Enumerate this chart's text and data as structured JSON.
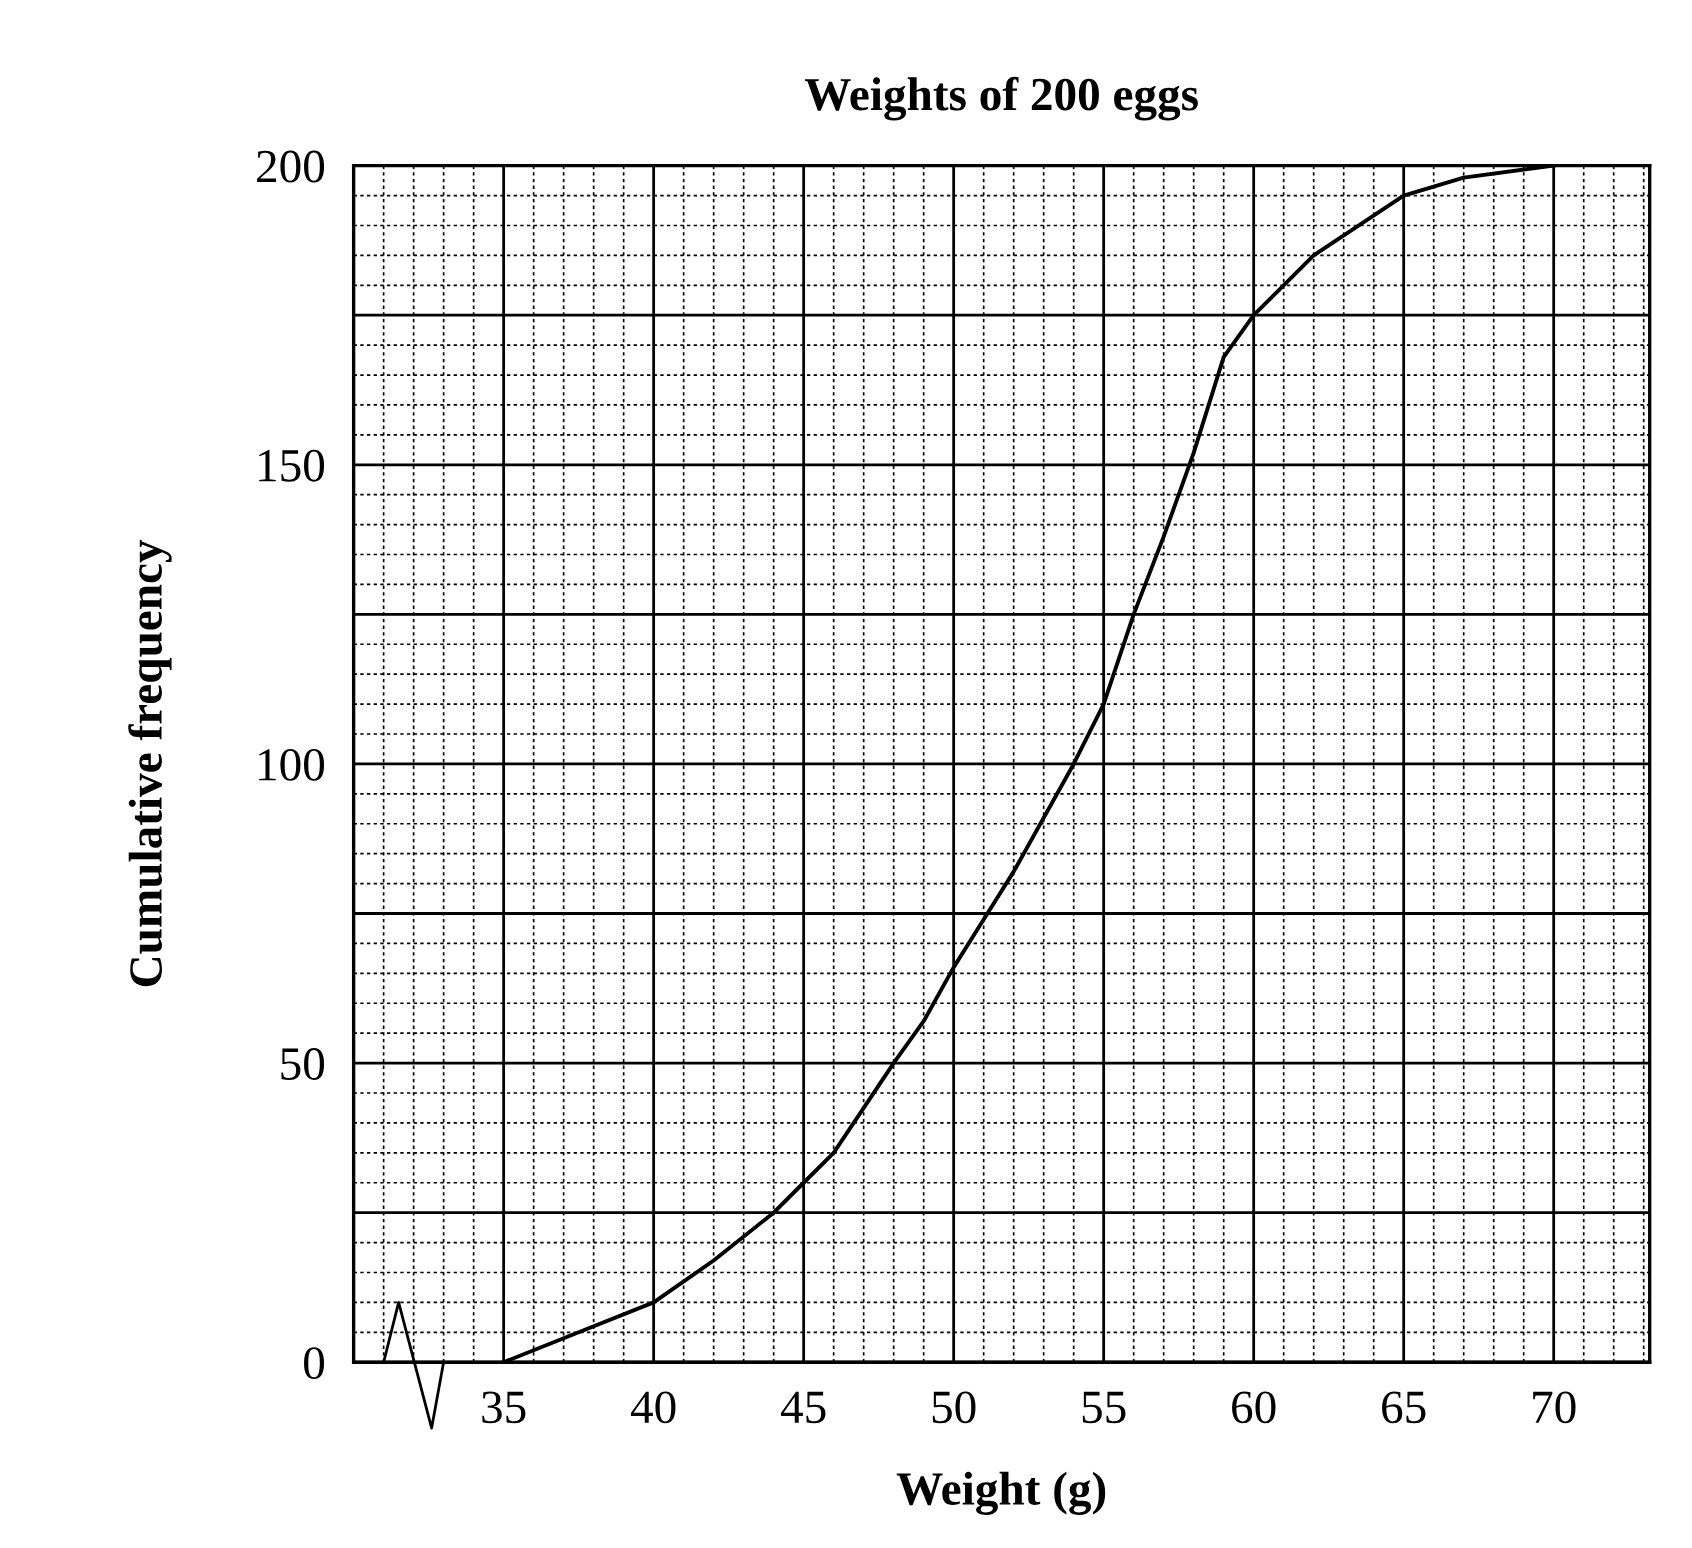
{
  "chart_data": {
    "type": "line",
    "title": "Weights of 200 eggs",
    "xlabel": "Weight (g)",
    "ylabel": "Cumulative frequency",
    "x": [
      35,
      37,
      40,
      42,
      44,
      45,
      46,
      48,
      49,
      50,
      51,
      52,
      54,
      55,
      56,
      57,
      58,
      59,
      60,
      62,
      65,
      67,
      70
    ],
    "series": [
      {
        "color": "#000000",
        "values": [
          0,
          4,
          10,
          17,
          25,
          30,
          35,
          50,
          57,
          66,
          74,
          82,
          100,
          110,
          125,
          138,
          152,
          168,
          175,
          185,
          195,
          198,
          200
        ]
      }
    ],
    "xlim": [
      30,
      73.2
    ],
    "ylim": [
      0,
      200
    ],
    "xticks": [
      {
        "value": 30,
        "label": null
      },
      35,
      40,
      45,
      50,
      55,
      60,
      65,
      70
    ],
    "yticks": [
      0,
      {
        "value": 25,
        "label": null
      },
      50,
      {
        "value": 75,
        "label": null
      },
      100,
      {
        "value": 125,
        "label": null
      },
      150,
      {
        "value": 175,
        "label": null
      },
      200
    ],
    "grid": true,
    "marker": "none",
    "line_style": "solid",
    "legend": false
  }
}
